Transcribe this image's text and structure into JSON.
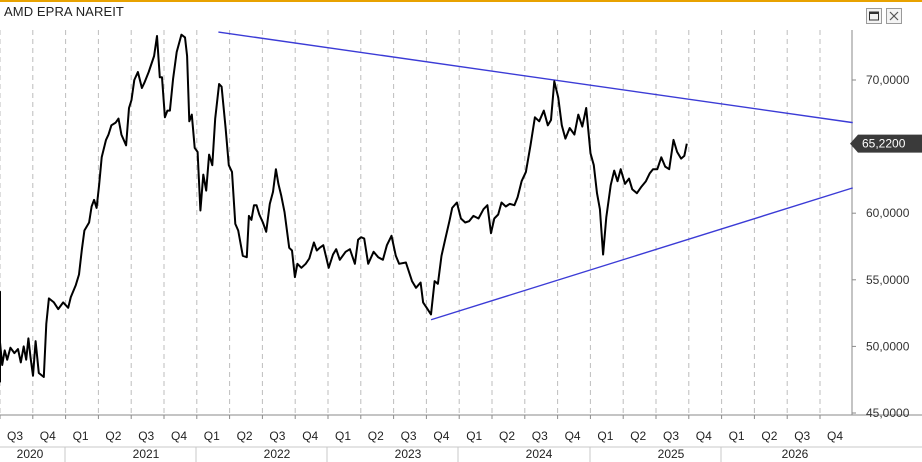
{
  "window": {
    "title": "AMD EPRA NAREIT",
    "restore_icon": "restore-icon",
    "close_icon": "close-icon"
  },
  "colors": {
    "price_line": "#000000",
    "trend_lines": "#3b3bd6",
    "last_price_bg": "#3a3a3a",
    "grid": "#bdbdbd",
    "title_bar_accent": "#e8a200"
  },
  "chart_data": {
    "type": "line",
    "title": "AMD EPRA NAREIT",
    "xlabel": "",
    "ylabel": "",
    "x_axis": {
      "quarters": [
        "Q3",
        "Q4",
        "Q1",
        "Q2",
        "Q3",
        "Q4",
        "Q1",
        "Q2",
        "Q3",
        "Q4",
        "Q1",
        "Q2",
        "Q3",
        "Q4",
        "Q1",
        "Q2",
        "Q3",
        "Q4",
        "Q1",
        "Q2",
        "Q3",
        "Q4",
        "Q1",
        "Q2",
        "Q3",
        "Q4"
      ],
      "years": [
        "2020",
        "2021",
        "2022",
        "2023",
        "2024",
        "2025",
        "2026"
      ],
      "start": "2020-07-01",
      "end": "2026-12-31"
    },
    "y_axis": {
      "ticks": [
        "45,0000",
        "50,0000",
        "55,0000",
        "60,0000",
        "65,0000",
        "70,0000"
      ],
      "tick_values": [
        45,
        50,
        55,
        60,
        65,
        70
      ],
      "ylim": [
        44.8,
        73.5
      ],
      "position": "right"
    },
    "grid": "vertical dashed at quarter boundaries",
    "last_value_label": "65,2200",
    "last_value": 65.22,
    "series": [
      {
        "values": [
          [
            "2020-06-01",
            47.3
          ],
          [
            "2020-06-06",
            54.1
          ],
          [
            "2020-06-12",
            50.2
          ],
          [
            "2020-06-17",
            51.6
          ],
          [
            "2020-06-22",
            49.4
          ],
          [
            "2020-06-30",
            50.3
          ],
          [
            "2020-07-07",
            48.6
          ],
          [
            "2020-07-14",
            49.7
          ],
          [
            "2020-07-21",
            49.0
          ],
          [
            "2020-07-30",
            49.9
          ],
          [
            "2020-08-10",
            49.5
          ],
          [
            "2020-08-20",
            49.8
          ],
          [
            "2020-08-28",
            48.8
          ],
          [
            "2020-09-05",
            50.0
          ],
          [
            "2020-09-12",
            49.0
          ],
          [
            "2020-09-18",
            50.6
          ],
          [
            "2020-09-24",
            49.2
          ],
          [
            "2020-10-01",
            47.8
          ],
          [
            "2020-10-08",
            50.4
          ],
          [
            "2020-10-17",
            48.0
          ],
          [
            "2020-10-31",
            47.7
          ],
          [
            "2020-11-07",
            51.7
          ],
          [
            "2020-11-14",
            53.6
          ],
          [
            "2020-11-28",
            53.3
          ],
          [
            "2020-12-10",
            52.8
          ],
          [
            "2020-12-24",
            53.3
          ],
          [
            "2021-01-07",
            52.9
          ],
          [
            "2021-01-14",
            53.7
          ],
          [
            "2021-01-28",
            54.6
          ],
          [
            "2021-02-06",
            55.4
          ],
          [
            "2021-02-14",
            57.3
          ],
          [
            "2021-02-21",
            58.7
          ],
          [
            "2021-03-06",
            59.3
          ],
          [
            "2021-03-13",
            60.5
          ],
          [
            "2021-03-20",
            61.0
          ],
          [
            "2021-03-27",
            60.4
          ],
          [
            "2021-04-03",
            62.1
          ],
          [
            "2021-04-10",
            64.2
          ],
          [
            "2021-04-22",
            65.5
          ],
          [
            "2021-04-29",
            65.9
          ],
          [
            "2021-05-07",
            66.6
          ],
          [
            "2021-05-19",
            66.8
          ],
          [
            "2021-05-27",
            67.1
          ],
          [
            "2021-06-04",
            65.9
          ],
          [
            "2021-06-17",
            65.1
          ],
          [
            "2021-06-25",
            67.9
          ],
          [
            "2021-07-02",
            68.5
          ],
          [
            "2021-07-10",
            70.0
          ],
          [
            "2021-07-20",
            70.6
          ],
          [
            "2021-07-31",
            69.4
          ],
          [
            "2021-08-07",
            69.8
          ],
          [
            "2021-08-19",
            70.6
          ],
          [
            "2021-09-03",
            71.8
          ],
          [
            "2021-09-11",
            73.3
          ],
          [
            "2021-09-19",
            70.2
          ],
          [
            "2021-09-25",
            70.2
          ],
          [
            "2021-10-03",
            67.2
          ],
          [
            "2021-10-10",
            67.7
          ],
          [
            "2021-10-17",
            67.7
          ],
          [
            "2021-10-26",
            70.1
          ],
          [
            "2021-11-05",
            72.1
          ],
          [
            "2021-11-18",
            73.4
          ],
          [
            "2021-11-28",
            73.2
          ],
          [
            "2021-12-04",
            71.8
          ],
          [
            "2021-12-10",
            66.9
          ],
          [
            "2021-12-17",
            67.4
          ],
          [
            "2021-12-25",
            64.9
          ],
          [
            "2022-01-02",
            64.6
          ],
          [
            "2022-01-10",
            60.2
          ],
          [
            "2022-01-18",
            62.9
          ],
          [
            "2022-01-26",
            61.7
          ],
          [
            "2022-02-03",
            64.4
          ],
          [
            "2022-02-12",
            63.6
          ],
          [
            "2022-02-20",
            67.1
          ],
          [
            "2022-03-03",
            69.7
          ],
          [
            "2022-03-10",
            69.5
          ],
          [
            "2022-03-15",
            68.1
          ],
          [
            "2022-03-21",
            66.4
          ],
          [
            "2022-03-30",
            63.6
          ],
          [
            "2022-04-08",
            63.1
          ],
          [
            "2022-04-17",
            59.2
          ],
          [
            "2022-04-25",
            58.7
          ],
          [
            "2022-05-08",
            56.8
          ],
          [
            "2022-05-19",
            56.7
          ],
          [
            "2022-05-25",
            59.8
          ],
          [
            "2022-06-01",
            59.5
          ],
          [
            "2022-06-08",
            60.6
          ],
          [
            "2022-06-15",
            60.6
          ],
          [
            "2022-06-23",
            59.9
          ],
          [
            "2022-07-03",
            59.3
          ],
          [
            "2022-07-12",
            58.6
          ],
          [
            "2022-07-22",
            60.7
          ],
          [
            "2022-07-31",
            61.6
          ],
          [
            "2022-08-08",
            63.3
          ],
          [
            "2022-08-15",
            62.2
          ],
          [
            "2022-08-23",
            61.3
          ],
          [
            "2022-09-01",
            60.1
          ],
          [
            "2022-09-14",
            57.4
          ],
          [
            "2022-09-22",
            57.2
          ],
          [
            "2022-09-30",
            55.2
          ],
          [
            "2022-10-07",
            56.2
          ],
          [
            "2022-10-18",
            55.9
          ],
          [
            "2022-10-30",
            56.2
          ],
          [
            "2022-11-09",
            56.6
          ],
          [
            "2022-11-22",
            57.8
          ],
          [
            "2022-11-30",
            57.2
          ],
          [
            "2022-12-08",
            57.4
          ],
          [
            "2022-12-18",
            57.6
          ],
          [
            "2023-01-02",
            55.9
          ],
          [
            "2023-01-14",
            56.9
          ],
          [
            "2023-01-23",
            57.3
          ],
          [
            "2023-02-02",
            56.5
          ],
          [
            "2023-02-18",
            57.1
          ],
          [
            "2023-03-02",
            57.3
          ],
          [
            "2023-03-16",
            56.2
          ],
          [
            "2023-03-25",
            58.0
          ],
          [
            "2023-04-02",
            58.2
          ],
          [
            "2023-04-11",
            58.1
          ],
          [
            "2023-04-22",
            56.2
          ],
          [
            "2023-05-07",
            57.1
          ],
          [
            "2023-05-20",
            56.7
          ],
          [
            "2023-06-02",
            56.5
          ],
          [
            "2023-06-13",
            57.6
          ],
          [
            "2023-06-26",
            58.3
          ],
          [
            "2023-07-08",
            56.8
          ],
          [
            "2023-07-17",
            56.2
          ],
          [
            "2023-08-05",
            56.3
          ],
          [
            "2023-08-22",
            54.9
          ],
          [
            "2023-09-02",
            54.4
          ],
          [
            "2023-09-15",
            54.8
          ],
          [
            "2023-09-22",
            53.3
          ],
          [
            "2023-10-02",
            52.9
          ],
          [
            "2023-10-14",
            52.4
          ],
          [
            "2023-10-24",
            54.9
          ],
          [
            "2023-11-02",
            54.7
          ],
          [
            "2023-11-12",
            56.8
          ],
          [
            "2023-11-23",
            58.1
          ],
          [
            "2023-12-04",
            59.4
          ],
          [
            "2023-12-12",
            60.4
          ],
          [
            "2023-12-25",
            60.8
          ],
          [
            "2024-01-05",
            59.6
          ],
          [
            "2024-01-17",
            59.3
          ],
          [
            "2024-01-28",
            59.4
          ],
          [
            "2024-02-09",
            59.8
          ],
          [
            "2024-02-23",
            59.6
          ],
          [
            "2024-03-08",
            60.3
          ],
          [
            "2024-03-19",
            60.6
          ],
          [
            "2024-03-29",
            58.5
          ],
          [
            "2024-04-07",
            59.6
          ],
          [
            "2024-04-18",
            59.9
          ],
          [
            "2024-04-27",
            60.8
          ],
          [
            "2024-05-09",
            60.5
          ],
          [
            "2024-05-20",
            60.7
          ],
          [
            "2024-06-02",
            60.6
          ],
          [
            "2024-06-11",
            61.2
          ],
          [
            "2024-06-22",
            62.4
          ],
          [
            "2024-07-04",
            63.1
          ],
          [
            "2024-07-17",
            65.1
          ],
          [
            "2024-07-29",
            67.2
          ],
          [
            "2024-08-10",
            66.9
          ],
          [
            "2024-08-23",
            67.7
          ],
          [
            "2024-09-03",
            66.6
          ],
          [
            "2024-09-12",
            67.0
          ],
          [
            "2024-09-21",
            69.9
          ],
          [
            "2024-10-02",
            68.7
          ],
          [
            "2024-10-12",
            66.6
          ],
          [
            "2024-10-22",
            65.6
          ],
          [
            "2024-11-03",
            66.4
          ],
          [
            "2024-11-16",
            65.9
          ],
          [
            "2024-11-27",
            67.4
          ],
          [
            "2024-12-08",
            66.5
          ],
          [
            "2024-12-19",
            67.9
          ],
          [
            "2024-12-31",
            64.5
          ],
          [
            "2025-01-09",
            63.6
          ],
          [
            "2025-01-18",
            61.5
          ],
          [
            "2025-01-26",
            60.3
          ],
          [
            "2025-02-04",
            56.9
          ],
          [
            "2025-02-13",
            59.7
          ],
          [
            "2025-02-25",
            62.1
          ],
          [
            "2025-03-07",
            63.2
          ],
          [
            "2025-03-16",
            62.4
          ],
          [
            "2025-03-25",
            63.3
          ],
          [
            "2025-04-06",
            62.2
          ],
          [
            "2025-04-17",
            62.6
          ],
          [
            "2025-04-26",
            61.8
          ],
          [
            "2025-05-09",
            61.5
          ],
          [
            "2025-05-22",
            62.0
          ],
          [
            "2025-06-03",
            62.4
          ],
          [
            "2025-06-14",
            63.0
          ],
          [
            "2025-06-23",
            63.3
          ],
          [
            "2025-07-05",
            63.3
          ],
          [
            "2025-07-16",
            64.2
          ],
          [
            "2025-07-27",
            63.5
          ],
          [
            "2025-08-07",
            63.3
          ],
          [
            "2025-08-19",
            65.5
          ],
          [
            "2025-08-29",
            64.6
          ],
          [
            "2025-09-09",
            64.1
          ],
          [
            "2025-09-18",
            64.3
          ],
          [
            "2025-09-25",
            65.22
          ]
        ]
      }
    ],
    "trendlines": [
      {
        "label": "upper",
        "from": [
          "2022-03-01",
          73.6
        ],
        "to": [
          "2026-12-31",
          66.8
        ]
      },
      {
        "label": "lower",
        "from": [
          "2023-10-14",
          52.0
        ],
        "to": [
          "2026-12-31",
          61.9
        ]
      }
    ]
  }
}
